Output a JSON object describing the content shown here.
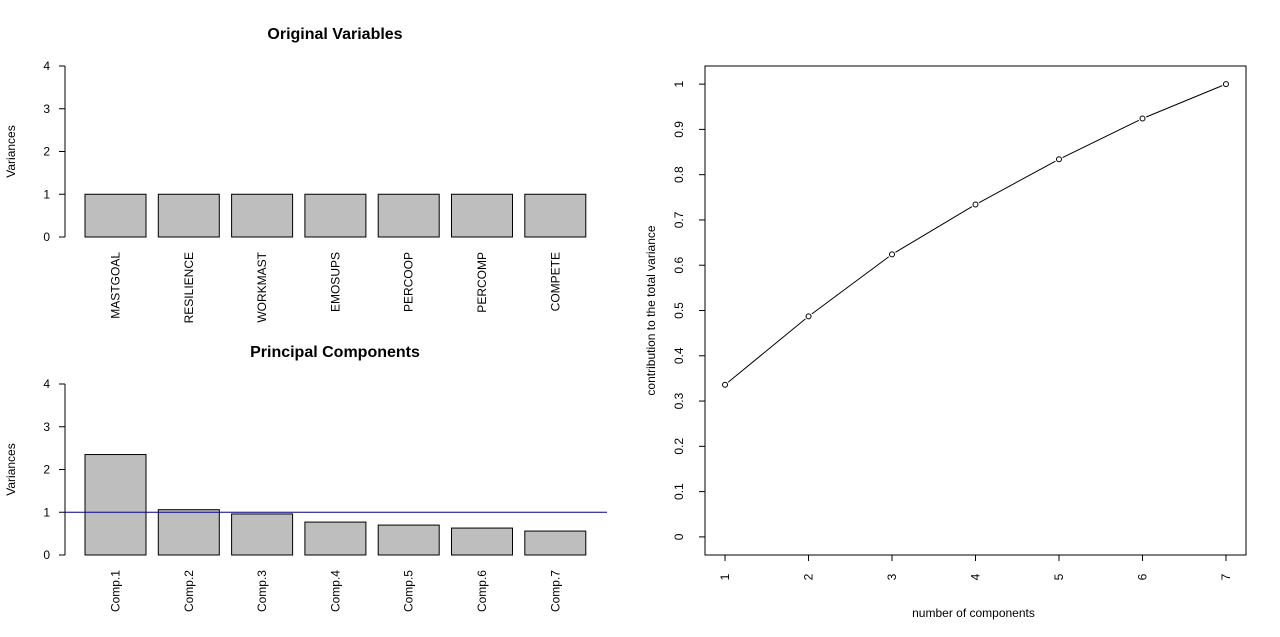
{
  "chart_data": [
    {
      "type": "bar",
      "title": "Original Variables",
      "ylabel": "Variances",
      "xlabel": "",
      "categories": [
        "MASTGOAL",
        "RESILIENCE",
        "WORKMAST",
        "EMOSUPS",
        "PERCOOP",
        "PERCOMP",
        "COMPETE"
      ],
      "values": [
        1,
        1,
        1,
        1,
        1,
        1,
        1
      ],
      "ylim": [
        0,
        4
      ],
      "yticks": [
        0,
        1,
        2,
        3,
        4
      ],
      "bar_color": "#bebebe",
      "grid": false
    },
    {
      "type": "bar",
      "title": "Principal Components",
      "ylabel": "Variances",
      "xlabel": "",
      "categories": [
        "Comp.1",
        "Comp.2",
        "Comp.3",
        "Comp.4",
        "Comp.5",
        "Comp.6",
        "Comp.7"
      ],
      "values": [
        2.35,
        1.06,
        0.96,
        0.77,
        0.7,
        0.63,
        0.56
      ],
      "ylim": [
        0,
        4
      ],
      "yticks": [
        0,
        1,
        2,
        3,
        4
      ],
      "bar_color": "#bebebe",
      "reference_line": {
        "y": 1,
        "color": "#00008b"
      },
      "grid": false
    },
    {
      "type": "line",
      "title": "",
      "xlabel": "number of components",
      "ylabel": "contribution to the total variance",
      "x": [
        1,
        2,
        3,
        4,
        5,
        6,
        7
      ],
      "y": [
        0.336,
        0.487,
        0.624,
        0.734,
        0.834,
        0.924,
        1.0
      ],
      "xlim": [
        0.76,
        7.24
      ],
      "ylim": [
        -0.04,
        1.04
      ],
      "xticks": [
        1,
        2,
        3,
        4,
        5,
        6,
        7
      ],
      "yticks": [
        "0",
        "0.1",
        "0.2",
        "0.3",
        "0.4",
        "0.5",
        "0.6",
        "0.7",
        "0.8",
        "0.9",
        "1"
      ],
      "marker": "open-circle",
      "grid": false
    }
  ]
}
